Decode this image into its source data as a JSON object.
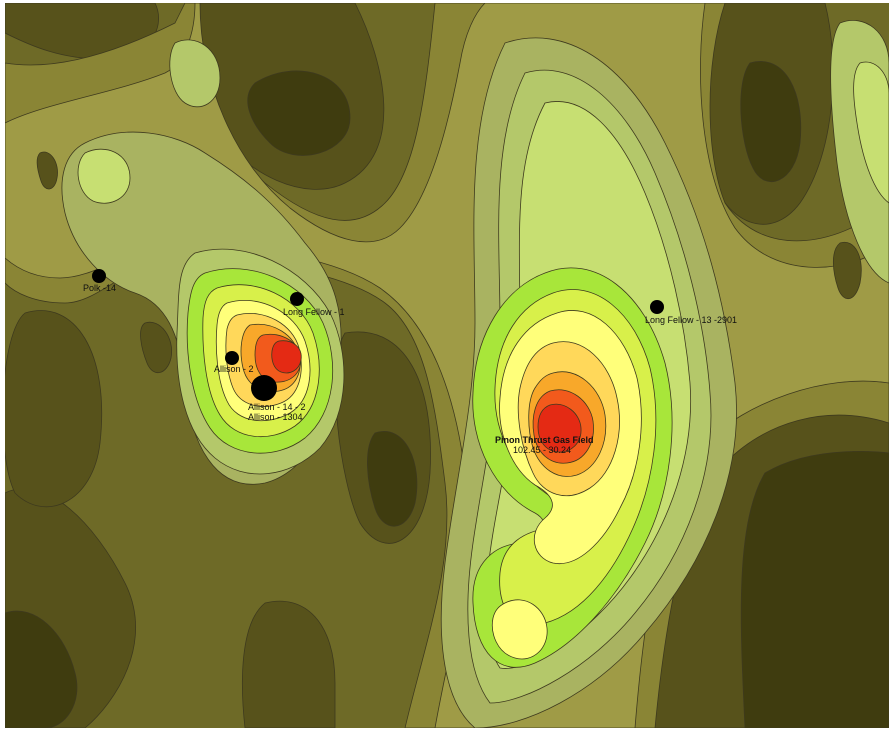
{
  "map": {
    "type": "filled-contour",
    "palette": {
      "darkest": "#3f3c0f",
      "dark": "#57521b",
      "olive": "#6e6a27",
      "olive_mid": "#8a8535",
      "olive_light": "#9f9b46",
      "sage": "#a9b361",
      "pale_green": "#b4c86a",
      "light_green": "#c7df72",
      "lime": "#a8e63a",
      "yellow_green": "#d8f04a",
      "yellow": "#ffff7a",
      "light_orange": "#ffd85a",
      "orange": "#f8a82a",
      "red_orange": "#f25a1c",
      "red": "#e42a14",
      "contour_line": "#3e3a1e",
      "marker": "#000000"
    },
    "wells": [
      {
        "id": "polk",
        "label": "Polk -14"
      },
      {
        "id": "longfellow1",
        "label": "Long Fellow - 1"
      },
      {
        "id": "allison2",
        "label": "Allison - 2"
      },
      {
        "id": "allison14",
        "label": "Allison - 14 - 2"
      },
      {
        "id": "allison1304",
        "label": "Allison - 1304"
      },
      {
        "id": "longfellow13",
        "label": "Long Fellow - 13 -2901"
      }
    ],
    "field": {
      "label": "Pinon Thrust Gas Field",
      "coords": "102.45 - 30.24"
    }
  }
}
